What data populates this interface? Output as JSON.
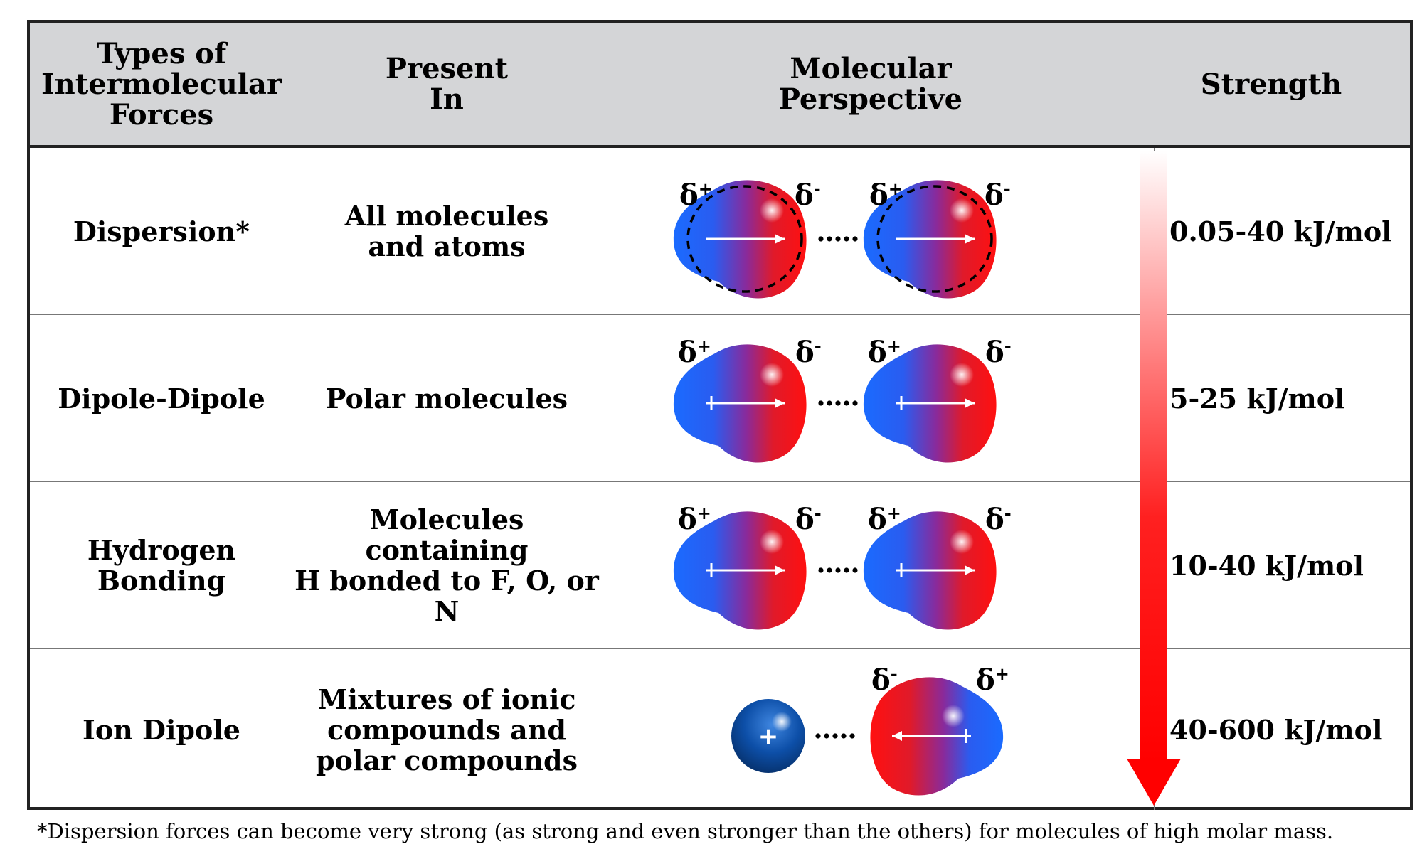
{
  "header": {
    "types": "Types of\nIntermolecular\nForces",
    "present": "Present\nIn",
    "perspective": "Molecular\nPerspective",
    "strength": "Strength"
  },
  "rows": [
    {
      "type": "Dispersion*",
      "present": "All molecules\nand atoms",
      "strength": "0.05-40 kJ/mol"
    },
    {
      "type": "Dipole-Dipole",
      "present": "Polar molecules",
      "strength": "5-25 kJ/mol"
    },
    {
      "type": "Hydrogen\nBonding",
      "present": "Molecules containing\nH bonded to F, O, or N",
      "strength": "10-40 kJ/mol"
    },
    {
      "type": "Ion Dipole",
      "present": "Mixtures of ionic\ncompounds and\npolar compounds",
      "strength": "40-600 kJ/mol"
    }
  ],
  "labels": {
    "delta_plus": "δ+",
    "delta_minus": "δ-",
    "plus": "+"
  },
  "colors": {
    "header_bg": "#d4d5d7",
    "blue": "#1a6bff",
    "red": "#ff1a1a",
    "ion_blue": "#0b3f8a",
    "arrow_red": "#ff0000"
  },
  "footnote": "*Dispersion forces can become very strong (as strong and even stronger than the others) for molecules of high molar mass."
}
